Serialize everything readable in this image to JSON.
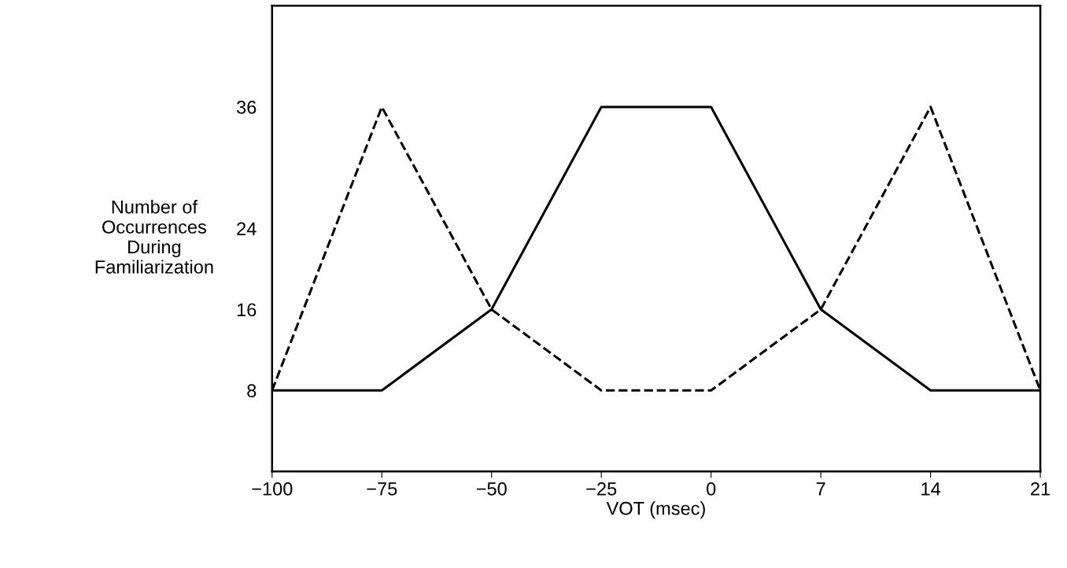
{
  "chart_data": {
    "type": "line",
    "xlabel": "VOT (msec)",
    "ylabel": "Number of\nOccurrences\nDuring\nFamiliarization",
    "categories": [
      "−100",
      "−75",
      "−50",
      "−25",
      "0",
      "7",
      "14",
      "21"
    ],
    "series": [
      {
        "color": "#000000",
        "line_style": "solid",
        "values": [
          8,
          8,
          16,
          36,
          36,
          16,
          8,
          8
        ]
      },
      {
        "color": "#000000",
        "line_style": "dashed",
        "values": [
          8,
          36,
          16,
          8,
          8,
          16,
          36,
          8
        ]
      }
    ],
    "ylim": [
      0,
      46
    ],
    "yticks": [
      8,
      16,
      24,
      36
    ],
    "grid": false,
    "marker": "none"
  }
}
